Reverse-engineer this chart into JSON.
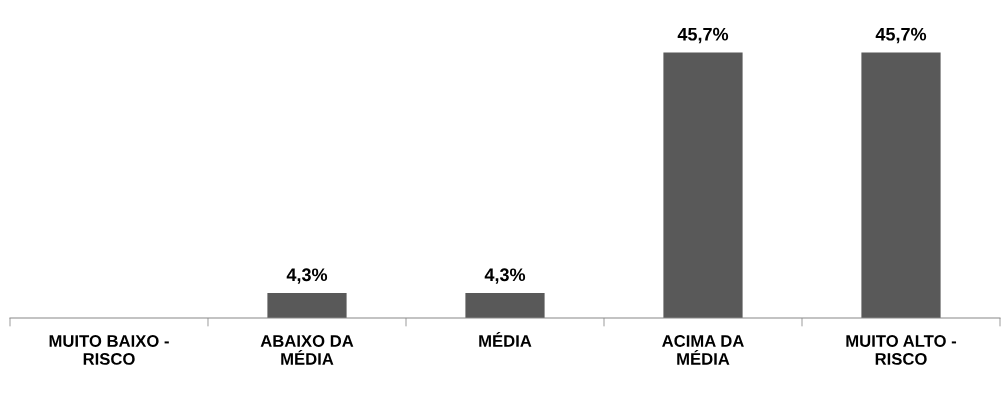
{
  "chart_data": {
    "type": "bar",
    "categories": [
      "MUITO BAIXO -\nRISCO",
      "ABAIXO DA\nMÉDIA",
      "MÉDIA",
      "ACIMA DA\nMÉDIA",
      "MUITO ALTO -\nRISCO"
    ],
    "values": [
      0,
      4.3,
      4.3,
      45.7,
      45.7
    ],
    "value_labels": [
      null,
      "4,3%",
      "4,3%",
      "45,7%",
      "45,7%"
    ],
    "color": "#595959",
    "grid": false,
    "legend": false
  }
}
